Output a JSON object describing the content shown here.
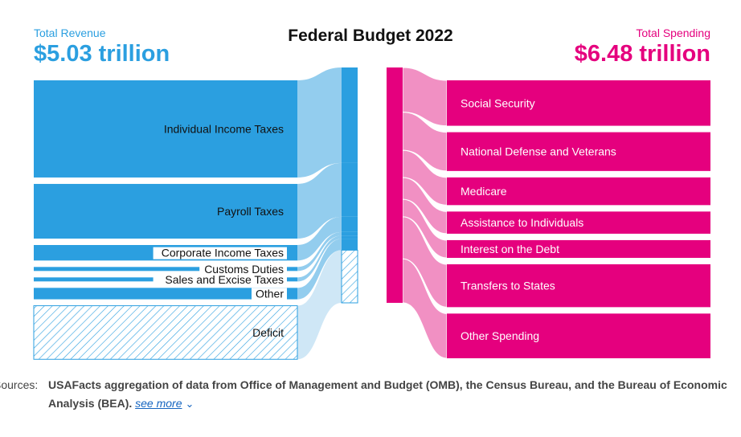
{
  "title": "Federal Budget 2022",
  "revenue": {
    "label": "Total Revenue",
    "value": "$5.03 trillion"
  },
  "spending": {
    "label": "Total Spending",
    "value": "$6.48 trillion"
  },
  "colors": {
    "revenue": "#2b9fe0",
    "revenue_flow": "#93cdee",
    "revenue_flow_light": "#cfe7f6",
    "spending": "#e5007e",
    "spending_flow": "#f190c3"
  },
  "chart_data": {
    "type": "sankey",
    "title": "Federal Budget 2022",
    "units": "trillion USD",
    "sources": [
      {
        "name": "Individual Income Taxes",
        "value": 2.63
      },
      {
        "name": "Payroll Taxes",
        "value": 1.48
      },
      {
        "name": "Corporate Income Taxes",
        "value": 0.42
      },
      {
        "name": "Customs Duties",
        "value": 0.1
      },
      {
        "name": "Sales and Excise Taxes",
        "value": 0.09
      },
      {
        "name": "Other",
        "value": 0.31
      },
      {
        "name": "Deficit",
        "value": 1.45,
        "hatched": true
      }
    ],
    "targets": [
      {
        "name": "Social Security",
        "value": 1.23
      },
      {
        "name": "National Defense and Veterans",
        "value": 1.05
      },
      {
        "name": "Medicare",
        "value": 0.75
      },
      {
        "name": "Assistance to Individuals",
        "value": 0.6
      },
      {
        "name": "Interest on the Debt",
        "value": 0.48
      },
      {
        "name": "Transfers to States",
        "value": 1.16
      },
      {
        "name": "Other Spending",
        "value": 1.21
      }
    ]
  },
  "footer": {
    "label": "Sources:",
    "text_line1": "USAFacts aggregation of data from Office of Management and Budget (OMB), the Census Bureau, and the Bureau of Economic",
    "text_line2": "Analysis (BEA).",
    "see_more": "see more"
  }
}
